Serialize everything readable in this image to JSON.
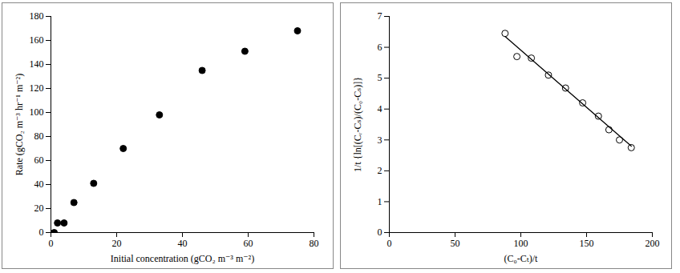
{
  "chart_data": [
    {
      "type": "scatter",
      "x_label": "Initial concentration (gCO₂ m⁻³ m⁻²)",
      "y_label": "Rate (gCO₂ m⁻³ hr⁻¹ m⁻²)",
      "xlim": [
        0,
        80
      ],
      "xticks": [
        0,
        20,
        40,
        60,
        80
      ],
      "ylim": [
        0,
        180
      ],
      "yticks": [
        0,
        20,
        40,
        60,
        80,
        100,
        120,
        140,
        160,
        180
      ],
      "series": [
        {
          "type": "scatter",
          "marker": "filled circle",
          "color": "#000000",
          "x": [
            1,
            2,
            4,
            7,
            13,
            22,
            33,
            46,
            59,
            75
          ],
          "values": [
            0,
            8,
            8,
            25,
            41,
            70,
            98,
            135,
            151,
            168
          ]
        }
      ]
    },
    {
      "type": "scatter",
      "x_label": "(C₀-Cₜ)/t",
      "y_label": "1/t {ln[(Cᵣ-Cₛ)/(C₀-Cₛ)]}",
      "xlim": [
        0,
        200
      ],
      "xticks": [
        0,
        50,
        100,
        150,
        200
      ],
      "ylim": [
        0,
        7
      ],
      "yticks": [
        0,
        1,
        2,
        3,
        4,
        5,
        6,
        7
      ],
      "series": [
        {
          "type": "scatter",
          "marker": "open circle",
          "color": "#000000",
          "x": [
            88,
            97,
            108,
            121,
            134,
            147,
            159,
            167,
            175,
            184
          ],
          "values": [
            6.45,
            5.7,
            5.65,
            5.1,
            4.68,
            4.2,
            3.77,
            3.33,
            3.0,
            2.75
          ]
        },
        {
          "type": "line",
          "color": "#000000",
          "x": [
            88,
            184
          ],
          "values": [
            6.35,
            2.8
          ]
        }
      ]
    }
  ]
}
